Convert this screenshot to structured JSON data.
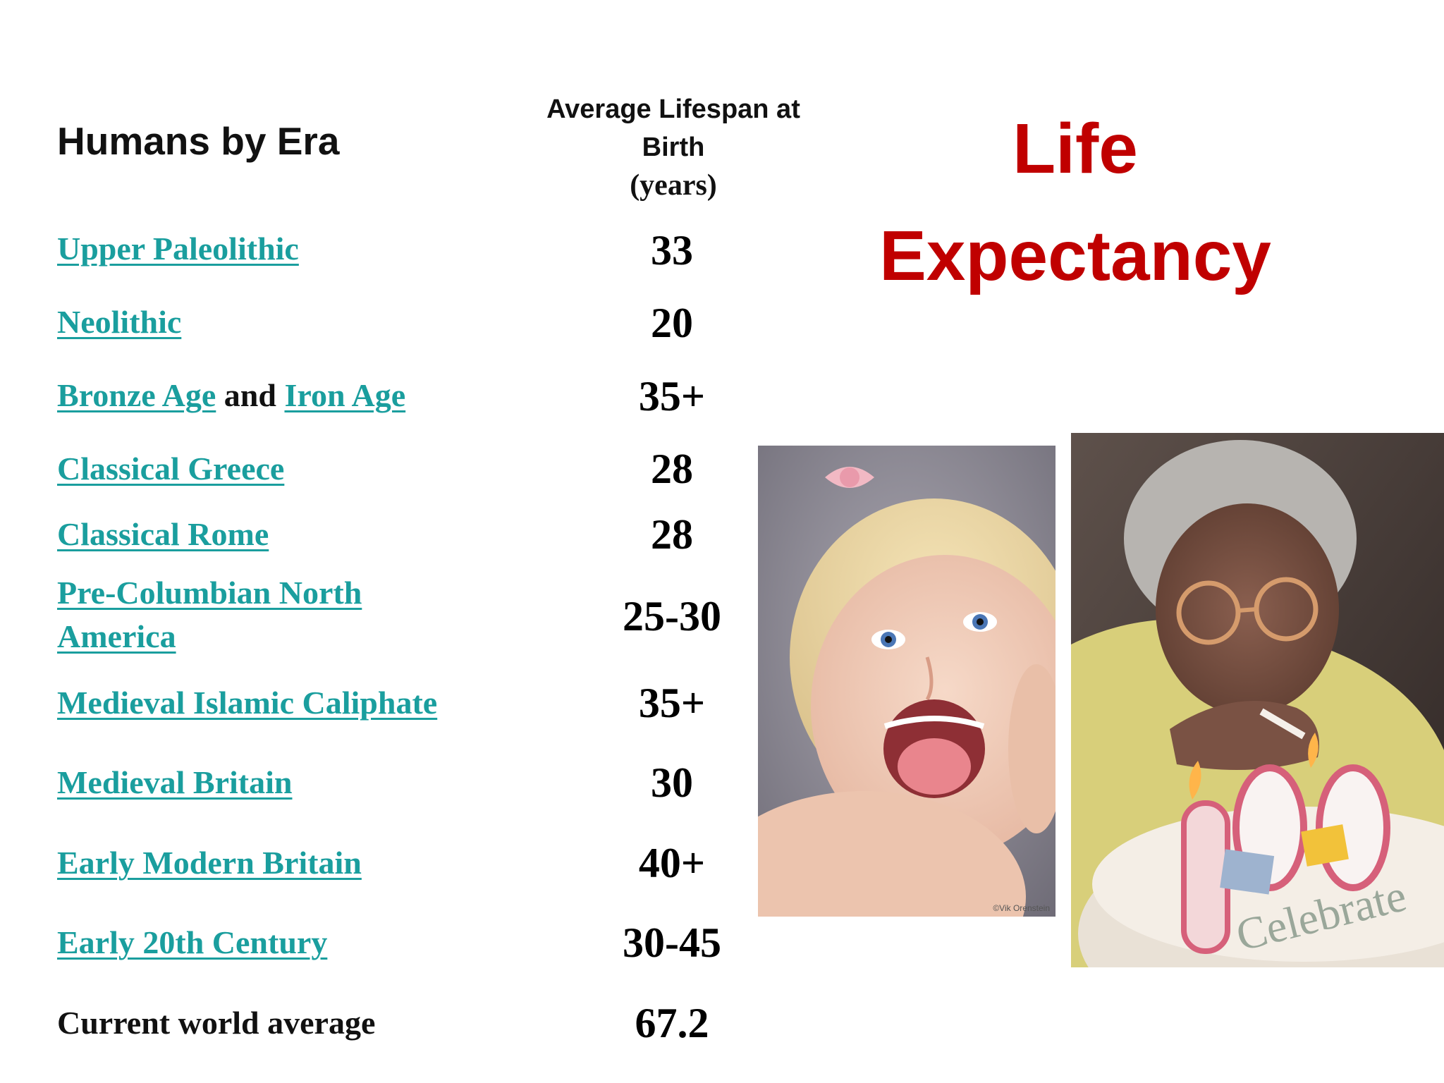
{
  "header": {
    "era_col": "Humans by Era",
    "avg_line1": "Average Lifespan at",
    "avg_line2": "Birth",
    "avg_line3": "(years)"
  },
  "title": {
    "line1": "Life",
    "line2": "Expectancy"
  },
  "rows": [
    {
      "era": "Upper Paleolithic",
      "value": "33"
    },
    {
      "era": "Neolithic",
      "value": "20"
    },
    {
      "era_a": "Bronze Age",
      "era_joiner": " and ",
      "era_b": "Iron Age",
      "value": "35+"
    },
    {
      "era": "Classical Greece",
      "value": "28"
    },
    {
      "era": "Classical Rome",
      "value": "28"
    },
    {
      "era_line1": "Pre-Columbian North",
      "era_line2": "America",
      "value": "25-30"
    },
    {
      "era": "Medieval Islamic Caliphate",
      "value": "35+"
    },
    {
      "era": "Medieval Britain",
      "value": "30"
    },
    {
      "era": "Early Modern Britain",
      "value": "40+"
    },
    {
      "era": "Early 20th Century",
      "value": "30-45"
    },
    {
      "era": "Current world average",
      "value": "67.2"
    }
  ],
  "photos": {
    "baby_credit": "©Vik Orenstein",
    "cake_text": "Celebrate",
    "candle_digits": [
      "1",
      "0",
      "0"
    ]
  },
  "colors": {
    "title": "#c00000",
    "link": "#1a9e9e",
    "text": "#111111"
  }
}
